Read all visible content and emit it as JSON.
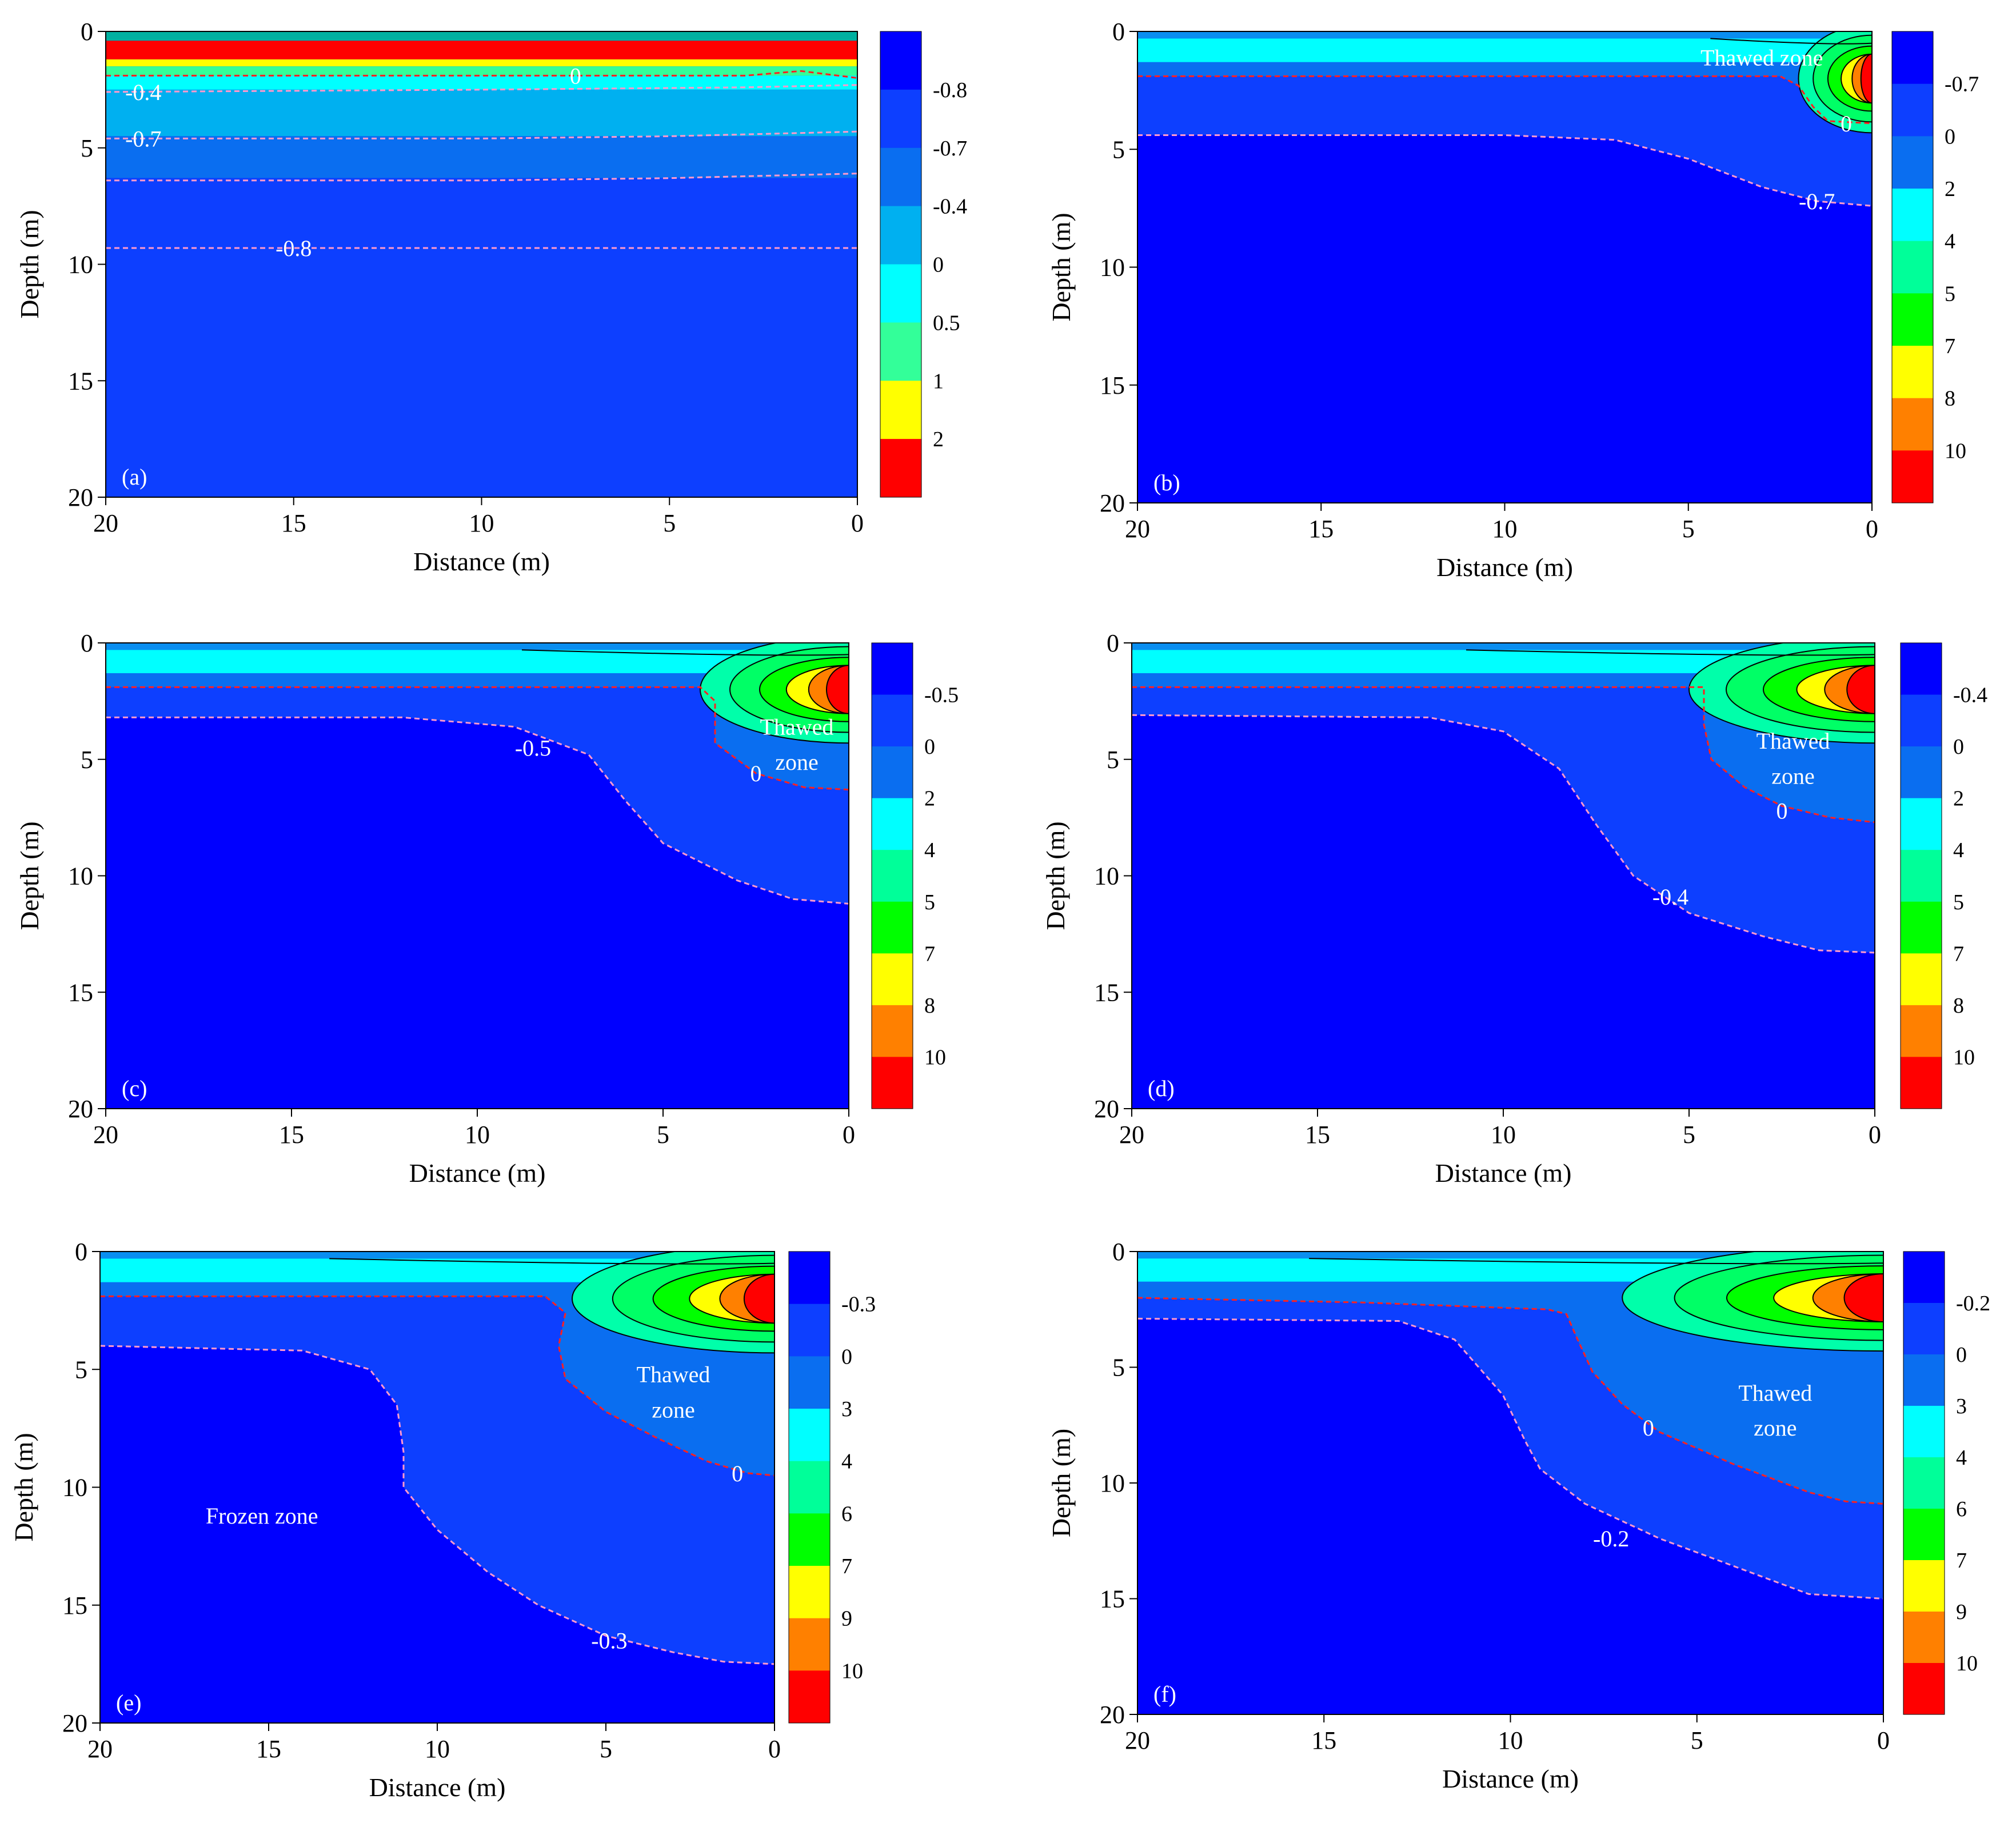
{
  "chart_data": [
    {
      "panel": "(a)",
      "type": "contour",
      "xlabel": "Distance (m)",
      "ylabel": "Depth (m)",
      "xlim": [
        20,
        0
      ],
      "ylim": [
        20,
        0
      ],
      "x_ticks": [
        "20",
        "15",
        "10",
        "5",
        "0"
      ],
      "y_ticks": [
        "0",
        "5",
        "10",
        "15",
        "20"
      ],
      "colorbar_levels": [
        "-0.8",
        "-0.7",
        "-0.4",
        "0",
        "0.5",
        "1",
        "2"
      ],
      "colorbar_colors": [
        "#0000ff",
        "#0d3fff",
        "#0a6ef0",
        "#00b0f0",
        "#00ffff",
        "#33ff99",
        "#ffff00",
        "#ff0000"
      ],
      "top_band": {
        "color": "#ff0000",
        "depth_top": 0.4,
        "depth_bottom": 1.2
      },
      "contours": [
        {
          "label": "0",
          "style": "red",
          "points": [
            [
              20,
              1.9
            ],
            [
              10,
              1.9
            ],
            [
              3,
              1.9
            ],
            [
              1.5,
              1.7
            ],
            [
              0,
              2.0
            ]
          ]
        },
        {
          "label": "-0.4",
          "style": "pink",
          "points": [
            [
              20,
              2.6
            ],
            [
              10,
              2.5
            ],
            [
              3,
              2.4
            ],
            [
              0,
              2.3
            ]
          ]
        },
        {
          "label": "-0.7",
          "style": "pink",
          "points": [
            [
              20,
              4.6
            ],
            [
              10,
              4.6
            ],
            [
              5,
              4.5
            ],
            [
              0,
              4.3
            ]
          ]
        },
        {
          "label": "",
          "style": "pink",
          "points": [
            [
              20,
              6.4
            ],
            [
              10,
              6.4
            ],
            [
              5,
              6.3
            ],
            [
              0,
              6.1
            ]
          ]
        },
        {
          "label": "-0.8",
          "style": "pink",
          "points": [
            [
              20,
              9.3
            ],
            [
              10,
              9.3
            ],
            [
              5,
              9.3
            ],
            [
              0,
              9.3
            ]
          ]
        }
      ],
      "contour_labels": [
        {
          "text": "-0.4",
          "x": 19,
          "y": 2.6
        },
        {
          "text": "-0.7",
          "x": 19,
          "y": 4.6
        },
        {
          "text": "-0.8",
          "x": 15,
          "y": 9.3
        },
        {
          "text": "0",
          "x": 7.5,
          "y": 1.9
        }
      ],
      "annotations": []
    },
    {
      "panel": "(b)",
      "type": "contour",
      "xlabel": "Distance (m)",
      "ylabel": "Depth (m)",
      "xlim": [
        20,
        0
      ],
      "ylim": [
        20,
        0
      ],
      "x_ticks": [
        "20",
        "15",
        "10",
        "5",
        "0"
      ],
      "y_ticks": [
        "0",
        "5",
        "10",
        "15",
        "20"
      ],
      "colorbar_levels": [
        "-0.7",
        "0",
        "2",
        "4",
        "5",
        "7",
        "8",
        "10"
      ],
      "colorbar_colors": [
        "#0000ff",
        "#0d3fff",
        "#0a6ef0",
        "#00ffff",
        "#00ff99",
        "#00ff00",
        "#ffff00",
        "#ff8000",
        "#ff0000"
      ],
      "hotspot": {
        "x": 0,
        "y": 2.0,
        "extent": 2
      },
      "contours": [
        {
          "label": "0",
          "style": "red",
          "points": [
            [
              20,
              1.9
            ],
            [
              10,
              1.9
            ],
            [
              4,
              1.9
            ],
            [
              2.5,
              1.9
            ],
            [
              2.0,
              2.3
            ],
            [
              1.6,
              3.2
            ],
            [
              1.2,
              3.8
            ],
            [
              0,
              3.9
            ]
          ]
        },
        {
          "label": "-0.7",
          "style": "pink",
          "points": [
            [
              20,
              4.4
            ],
            [
              10,
              4.4
            ],
            [
              7,
              4.6
            ],
            [
              5,
              5.4
            ],
            [
              3,
              6.6
            ],
            [
              1.5,
              7.2
            ],
            [
              0,
              7.4
            ]
          ]
        }
      ],
      "contour_labels": [
        {
          "text": "0",
          "x": 0.7,
          "y": 3.9
        },
        {
          "text": "-0.7",
          "x": 1.5,
          "y": 7.2
        }
      ],
      "annotations": [
        {
          "text": "Thawed zone",
          "x": 3,
          "y": 1.1
        }
      ]
    },
    {
      "panel": "(c)",
      "type": "contour",
      "xlabel": "Distance (m)",
      "ylabel": "Depth (m)",
      "xlim": [
        20,
        0
      ],
      "ylim": [
        20,
        0
      ],
      "x_ticks": [
        "20",
        "15",
        "10",
        "5",
        "0"
      ],
      "y_ticks": [
        "0",
        "5",
        "10",
        "15",
        "20"
      ],
      "colorbar_levels": [
        "-0.5",
        "0",
        "2",
        "4",
        "5",
        "7",
        "8",
        "10"
      ],
      "colorbar_colors": [
        "#0000ff",
        "#0d3fff",
        "#0a6ef0",
        "#00ffff",
        "#00ff99",
        "#00ff00",
        "#ffff00",
        "#ff8000",
        "#ff0000"
      ],
      "hotspot": {
        "x": 0,
        "y": 2.0,
        "extent": 4
      },
      "contours": [
        {
          "label": "0",
          "style": "red",
          "points": [
            [
              20,
              1.9
            ],
            [
              10,
              1.9
            ],
            [
              4,
              1.9
            ],
            [
              3.6,
              2.5
            ],
            [
              3.6,
              4.3
            ],
            [
              2.5,
              5.6
            ],
            [
              1.2,
              6.2
            ],
            [
              0,
              6.3
            ]
          ]
        },
        {
          "label": "-0.5",
          "style": "pink",
          "points": [
            [
              20,
              3.2
            ],
            [
              12,
              3.2
            ],
            [
              9,
              3.6
            ],
            [
              7,
              4.8
            ],
            [
              6,
              6.8
            ],
            [
              5,
              8.6
            ],
            [
              3,
              10.2
            ],
            [
              1.5,
              11.0
            ],
            [
              0,
              11.2
            ]
          ]
        }
      ],
      "contour_labels": [
        {
          "text": "0",
          "x": 2.5,
          "y": 5.6
        },
        {
          "text": "-0.5",
          "x": 8.5,
          "y": 4.5
        }
      ],
      "annotations": [
        {
          "text": "Thawed",
          "x": 1.4,
          "y": 3.6
        },
        {
          "text": "zone",
          "x": 1.4,
          "y": 5.1
        }
      ]
    },
    {
      "panel": "(d)",
      "type": "contour",
      "xlabel": "Distance (m)",
      "ylabel": "Depth (m)",
      "xlim": [
        20,
        0
      ],
      "ylim": [
        20,
        0
      ],
      "x_ticks": [
        "20",
        "15",
        "10",
        "5",
        "0"
      ],
      "y_ticks": [
        "0",
        "5",
        "10",
        "15",
        "20"
      ],
      "colorbar_levels": [
        "-0.4",
        "0",
        "2",
        "4",
        "5",
        "7",
        "8",
        "10"
      ],
      "colorbar_colors": [
        "#0000ff",
        "#0d3fff",
        "#0a6ef0",
        "#00ffff",
        "#00ff99",
        "#00ff00",
        "#ffff00",
        "#ff8000",
        "#ff0000"
      ],
      "hotspot": {
        "x": 0,
        "y": 2.0,
        "extent": 5
      },
      "contours": [
        {
          "label": "0",
          "style": "red",
          "points": [
            [
              20,
              1.9
            ],
            [
              10,
              1.9
            ],
            [
              4.6,
              1.9
            ],
            [
              4.6,
              3.5
            ],
            [
              4.4,
              5.0
            ],
            [
              3.5,
              6.2
            ],
            [
              2.5,
              7.0
            ],
            [
              1.2,
              7.5
            ],
            [
              0,
              7.7
            ]
          ]
        },
        {
          "label": "-0.4",
          "style": "pink",
          "points": [
            [
              20,
              3.1
            ],
            [
              12,
              3.2
            ],
            [
              10,
              3.8
            ],
            [
              8.5,
              5.4
            ],
            [
              7.5,
              7.8
            ],
            [
              6.5,
              10.0
            ],
            [
              5,
              11.6
            ],
            [
              3,
              12.6
            ],
            [
              1.5,
              13.2
            ],
            [
              0,
              13.3
            ]
          ]
        }
      ],
      "contour_labels": [
        {
          "text": "0",
          "x": 2.5,
          "y": 7.2
        },
        {
          "text": "-0.4",
          "x": 5.5,
          "y": 10.9
        }
      ],
      "annotations": [
        {
          "text": "Thawed",
          "x": 2.2,
          "y": 4.2
        },
        {
          "text": "zone",
          "x": 2.2,
          "y": 5.7
        }
      ]
    },
    {
      "panel": "(e)",
      "type": "contour",
      "xlabel": "Distance (m)",
      "ylabel": "Depth (m)",
      "xlim": [
        20,
        0
      ],
      "ylim": [
        20,
        0
      ],
      "x_ticks": [
        "20",
        "15",
        "10",
        "5",
        "0"
      ],
      "y_ticks": [
        "0",
        "5",
        "10",
        "15",
        "20"
      ],
      "colorbar_levels": [
        "-0.3",
        "0",
        "3",
        "4",
        "6",
        "7",
        "9",
        "10"
      ],
      "colorbar_colors": [
        "#0000ff",
        "#0d3fff",
        "#0a6ef0",
        "#00ffff",
        "#00ff99",
        "#00ff00",
        "#ffff00",
        "#ff8000",
        "#ff0000"
      ],
      "hotspot": {
        "x": 0,
        "y": 2.0,
        "extent": 6
      },
      "contours": [
        {
          "label": "0",
          "style": "red",
          "points": [
            [
              20,
              1.9
            ],
            [
              10,
              1.9
            ],
            [
              6.8,
              1.9
            ],
            [
              6.2,
              2.6
            ],
            [
              6.4,
              4.0
            ],
            [
              6.2,
              5.4
            ],
            [
              5.0,
              6.8
            ],
            [
              3.5,
              7.9
            ],
            [
              2.0,
              8.9
            ],
            [
              0.8,
              9.4
            ],
            [
              0,
              9.5
            ]
          ]
        },
        {
          "label": "-0.3",
          "style": "pink",
          "points": [
            [
              20,
              4.0
            ],
            [
              14,
              4.2
            ],
            [
              12,
              5.0
            ],
            [
              11.2,
              6.5
            ],
            [
              11.0,
              8.5
            ],
            [
              11.0,
              10.0
            ],
            [
              10.0,
              11.8
            ],
            [
              8.5,
              13.6
            ],
            [
              7,
              15.0
            ],
            [
              5,
              16.3
            ],
            [
              3,
              17.0
            ],
            [
              1.5,
              17.4
            ],
            [
              0,
              17.5
            ]
          ]
        }
      ],
      "contour_labels": [
        {
          "text": "0",
          "x": 1.1,
          "y": 9.4
        },
        {
          "text": "-0.3",
          "x": 4.9,
          "y": 16.5
        }
      ],
      "annotations": [
        {
          "text": "Thawed",
          "x": 3.0,
          "y": 5.2
        },
        {
          "text": "zone",
          "x": 3.0,
          "y": 6.7
        },
        {
          "text": "Frozen zone",
          "x": 15.2,
          "y": 11.2
        }
      ]
    },
    {
      "panel": "(f)",
      "type": "contour",
      "xlabel": "Distance (m)",
      "ylabel": "Depth (m)",
      "xlim": [
        20,
        0
      ],
      "ylim": [
        20,
        0
      ],
      "x_ticks": [
        "20",
        "15",
        "10",
        "5",
        "0"
      ],
      "y_ticks": [
        "0",
        "5",
        "10",
        "15",
        "20"
      ],
      "colorbar_levels": [
        "-0.2",
        "0",
        "3",
        "4",
        "6",
        "7",
        "9",
        "10"
      ],
      "colorbar_colors": [
        "#0000ff",
        "#0d3fff",
        "#0a6ef0",
        "#00ffff",
        "#00ff99",
        "#00ff00",
        "#ffff00",
        "#ff8000",
        "#ff0000"
      ],
      "hotspot": {
        "x": 0,
        "y": 2.0,
        "extent": 7
      },
      "contours": [
        {
          "label": "0",
          "style": "red",
          "points": [
            [
              20,
              2.0
            ],
            [
              14,
              2.2
            ],
            [
              9,
              2.5
            ],
            [
              8.5,
              2.7
            ],
            [
              8.2,
              3.8
            ],
            [
              7.8,
              5.2
            ],
            [
              7,
              6.6
            ],
            [
              6,
              7.8
            ],
            [
              4,
              9.2
            ],
            [
              2,
              10.4
            ],
            [
              1,
              10.8
            ],
            [
              0,
              10.9
            ]
          ]
        },
        {
          "label": "-0.2",
          "style": "pink",
          "points": [
            [
              20,
              2.9
            ],
            [
              13,
              3.0
            ],
            [
              11.5,
              3.8
            ],
            [
              10.2,
              6.2
            ],
            [
              9.6,
              8.2
            ],
            [
              9.2,
              9.4
            ],
            [
              8,
              10.9
            ],
            [
              6,
              12.4
            ],
            [
              4,
              13.6
            ],
            [
              2,
              14.8
            ],
            [
              0,
              15.0
            ]
          ]
        }
      ],
      "contour_labels": [
        {
          "text": "0",
          "x": 6.3,
          "y": 7.6
        },
        {
          "text": "-0.2",
          "x": 7.3,
          "y": 12.4
        }
      ],
      "annotations": [
        {
          "text": "Thawed",
          "x": 2.9,
          "y": 6.1
        },
        {
          "text": "zone",
          "x": 2.9,
          "y": 7.6
        }
      ]
    }
  ]
}
